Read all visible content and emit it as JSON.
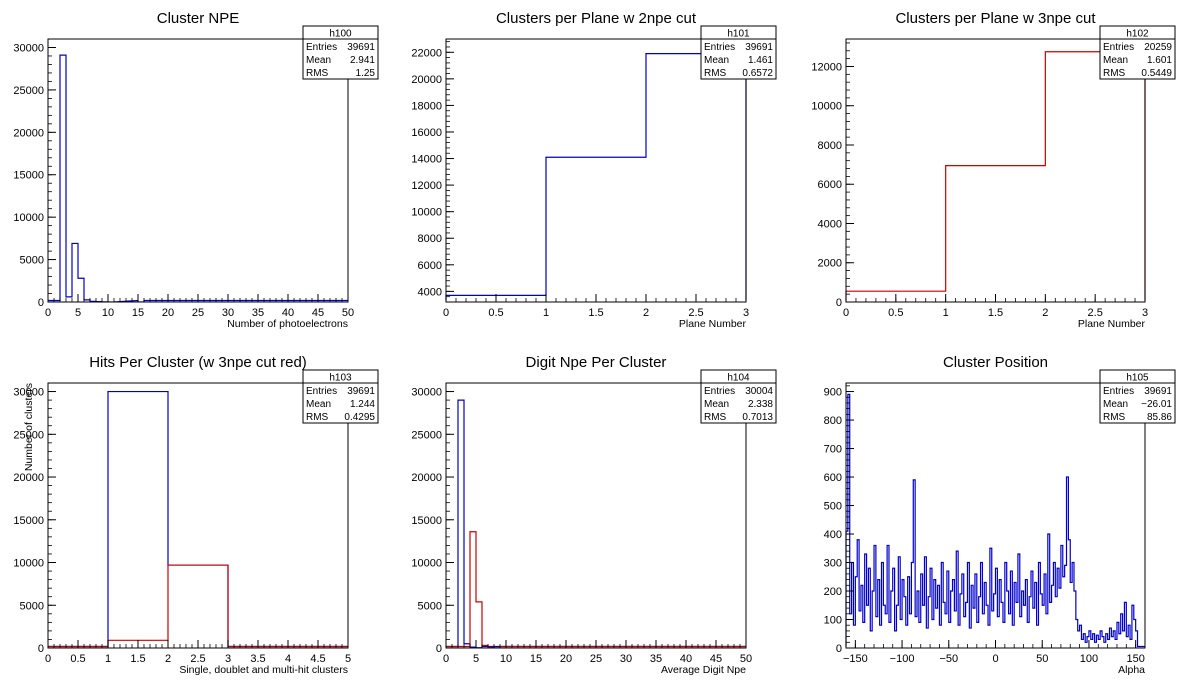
{
  "chart_data": [
    {
      "type": "histogram",
      "title": "Cluster NPE",
      "xlabel": "Number of photoelectrons",
      "ylabel": "",
      "xlim": [
        0,
        50
      ],
      "ylim": [
        0,
        31000
      ],
      "xticks": [
        0,
        5,
        10,
        15,
        20,
        25,
        30,
        35,
        40,
        45,
        50
      ],
      "yticks": [
        0,
        5000,
        10000,
        15000,
        20000,
        25000,
        30000
      ],
      "stats": {
        "name": "h100",
        "entries_label": "Entries",
        "entries": "39691",
        "mean_label": "Mean",
        "mean": "2.941",
        "rms_label": "RMS",
        "rms": "1.25"
      },
      "series": [
        {
          "color": "#0000cc",
          "bin_width": 1,
          "bins": [
            [
              2,
              29100
            ],
            [
              3,
              600
            ],
            [
              4,
              6900
            ],
            [
              5,
              2800
            ],
            [
              6,
              250
            ],
            [
              7,
              80
            ],
            [
              8,
              40
            ],
            [
              9,
              20
            ],
            [
              10,
              10
            ],
            [
              15,
              5
            ]
          ]
        }
      ]
    },
    {
      "type": "histogram",
      "title": "Clusters per Plane w 2npe cut",
      "xlabel": "Plane Number",
      "ylabel": "",
      "xlim": [
        0,
        3
      ],
      "ylim": [
        3200,
        23000
      ],
      "xticks": [
        0,
        0.5,
        1,
        1.5,
        2,
        2.5,
        3
      ],
      "yticks": [
        4000,
        6000,
        8000,
        10000,
        12000,
        14000,
        16000,
        18000,
        20000,
        22000
      ],
      "stats": {
        "name": "h101",
        "entries_label": "Entries",
        "entries": "39691",
        "mean_label": "Mean",
        "mean": "1.461",
        "rms_label": "RMS",
        "rms": "0.6572"
      },
      "series": [
        {
          "color": "#0000cc",
          "bin_width": 1,
          "bins": [
            [
              0,
              3700
            ],
            [
              1,
              14100
            ],
            [
              2,
              21900
            ]
          ]
        }
      ]
    },
    {
      "type": "histogram",
      "title": "Clusters per Plane w 3npe cut",
      "xlabel": "Plane Number",
      "ylabel": "",
      "xlim": [
        0,
        3
      ],
      "ylim": [
        0,
        13400
      ],
      "xticks": [
        0,
        0.5,
        1,
        1.5,
        2,
        2.5,
        3
      ],
      "yticks": [
        0,
        2000,
        4000,
        6000,
        8000,
        10000,
        12000
      ],
      "stats": {
        "name": "h102",
        "entries_label": "Entries",
        "entries": "20259",
        "mean_label": "Mean",
        "mean": "1.601",
        "rms_label": "RMS",
        "rms": "0.5449"
      },
      "series": [
        {
          "color": "#cc0000",
          "bin_width": 1,
          "bins": [
            [
              0,
              550
            ],
            [
              1,
              6950
            ],
            [
              2,
              12750
            ]
          ]
        }
      ]
    },
    {
      "type": "histogram",
      "title": "Hits Per Cluster (w 3npe cut red)",
      "xlabel": "Single, doublet and multi-hit clusters",
      "ylabel": "Number of clusters",
      "xlim": [
        0,
        5
      ],
      "ylim": [
        0,
        31000
      ],
      "xticks": [
        0,
        0.5,
        1,
        1.5,
        2,
        2.5,
        3,
        3.5,
        4,
        4.5,
        5
      ],
      "yticks": [
        0,
        5000,
        10000,
        15000,
        20000,
        25000,
        30000
      ],
      "stats": {
        "name": "h103",
        "entries_label": "Entries",
        "entries": "39691",
        "mean_label": "Mean",
        "mean": "1.244",
        "rms_label": "RMS",
        "rms": "0.4295"
      },
      "series": [
        {
          "color": "#0000cc",
          "bin_width": 1,
          "bins": [
            [
              1,
              30000
            ],
            [
              2,
              9700
            ]
          ]
        },
        {
          "color": "#cc0000",
          "bin_width": 1,
          "bins": [
            [
              1,
              900
            ],
            [
              2,
              9700
            ]
          ]
        }
      ]
    },
    {
      "type": "histogram",
      "title": "Digit Npe Per Cluster",
      "xlabel": "Average Digit Npe",
      "ylabel": "",
      "xlim": [
        0,
        50
      ],
      "ylim": [
        0,
        31000
      ],
      "xticks": [
        0,
        5,
        10,
        15,
        20,
        25,
        30,
        35,
        40,
        45,
        50
      ],
      "yticks": [
        0,
        5000,
        10000,
        15000,
        20000,
        25000,
        30000
      ],
      "stats": {
        "name": "h104",
        "entries_label": "Entries",
        "entries": "30004",
        "mean_label": "Mean",
        "mean": "2.338",
        "rms_label": "RMS",
        "rms": "0.7013"
      },
      "series": [
        {
          "color": "#0000cc",
          "bin_width": 1,
          "bins": [
            [
              2,
              29000
            ],
            [
              3,
              500
            ],
            [
              4,
              100
            ],
            [
              5,
              30
            ]
          ]
        },
        {
          "color": "#cc0000",
          "bin_width": 1,
          "bins": [
            [
              4,
              13600
            ],
            [
              5,
              5400
            ],
            [
              6,
              300
            ],
            [
              7,
              60
            ],
            [
              8,
              20
            ]
          ]
        }
      ]
    },
    {
      "type": "histogram",
      "title": "Cluster Position",
      "xlabel": "Alpha",
      "ylabel": "",
      "xlim": [
        -160,
        160
      ],
      "ylim": [
        0,
        930
      ],
      "xticks": [
        -150,
        -100,
        -50,
        0,
        50,
        100,
        150
      ],
      "yticks": [
        0,
        100,
        200,
        300,
        400,
        500,
        600,
        700,
        800,
        900
      ],
      "stats": {
        "name": "h105",
        "entries_label": "Entries",
        "entries": "39691",
        "mean_label": "Mean",
        "mean": "−26.01",
        "rms_label": "RMS",
        "rms": "85.86"
      },
      "series": [
        {
          "color": "#0000cc",
          "x_start": -160,
          "bin_width": 2,
          "values": [
            410,
            890,
            120,
            300,
            80,
            250,
            380,
            130,
            220,
            90,
            330,
            150,
            280,
            60,
            200,
            360,
            110,
            240,
            80,
            300,
            150,
            120,
            360,
            90,
            200,
            280,
            60,
            150,
            320,
            100,
            240,
            180,
            80,
            250,
            120,
            300,
            590,
            110,
            200,
            90,
            260,
            150,
            320,
            70,
            180,
            280,
            100,
            240,
            140,
            220,
            80,
            300,
            160,
            120,
            270,
            90,
            200,
            240,
            130,
            340,
            80,
            190,
            260,
            110,
            160,
            300,
            70,
            220,
            140,
            260,
            90,
            180,
            300,
            120,
            230,
            150,
            80,
            350,
            130,
            190,
            280,
            110,
            240,
            160,
            90,
            300,
            200,
            120,
            270,
            80,
            230,
            160,
            330,
            110,
            200,
            150,
            240,
            90,
            180,
            270,
            140,
            230,
            80,
            300,
            190,
            150,
            260,
            120,
            400,
            160,
            220,
            300,
            180,
            280,
            210,
            360,
            250,
            290,
            600,
            380,
            230,
            300,
            200,
            100,
            60,
            80,
            30,
            50,
            20,
            40,
            60,
            30,
            50,
            20,
            45,
            30,
            60,
            40,
            20,
            50,
            30,
            70,
            40,
            60,
            30,
            90,
            50,
            120,
            60,
            160,
            40,
            80,
            30,
            150,
            100,
            60
          ]
        }
      ]
    }
  ]
}
